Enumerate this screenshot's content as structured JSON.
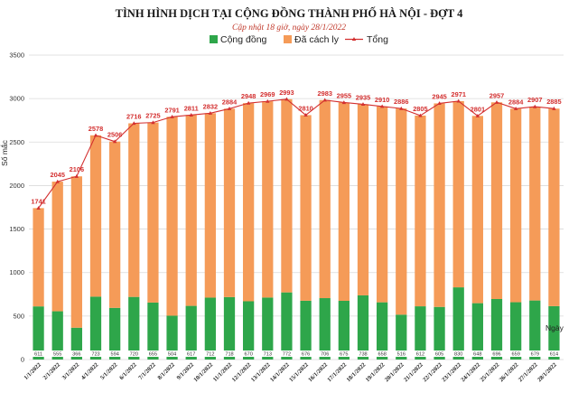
{
  "chart_data": {
    "type": "bar",
    "title": "TÌNH HÌNH DỊCH TẠI CỘNG ĐỒNG THÀNH PHỐ HÀ NỘI - ĐỢT 4",
    "subtitle": "Cập nhật 18 giờ, ngày  28/1/2022",
    "xlabel": "Ngày",
    "ylabel": "Số mắc",
    "ylim": [
      0,
      3500
    ],
    "yticks": [
      0,
      500,
      1000,
      1500,
      2000,
      2500,
      3000,
      3500
    ],
    "grid": true,
    "legend": "top-center",
    "categories": [
      "1/1/2022",
      "2/1/2022",
      "3/1/2022",
      "4/1/2022",
      "5/1/2022",
      "6/1/2022",
      "7/1/2022",
      "8/1/2022",
      "9/1/2022",
      "10/1/2022",
      "11/1/2022",
      "12/1/2022",
      "13/1/2022",
      "14/1/2022",
      "15/1/2022",
      "16/1/2022",
      "17/1/2022",
      "18/1/2022",
      "19/1/2022",
      "20/1/2022",
      "21/1/2022",
      "22/1/2022",
      "23/1/2022",
      "24/1/2022",
      "25/1/2022",
      "26/1/2022",
      "27/1/2022",
      "28/1/2022"
    ],
    "series": [
      {
        "name": "Cộng đồng",
        "type": "bar",
        "color": "#2ea64a",
        "values": [
          611,
          555,
          366,
          723,
          594,
          720,
          655,
          504,
          617,
          712,
          718,
          670,
          713,
          772,
          676,
          706,
          675,
          738,
          658,
          516,
          612,
          605,
          830,
          648,
          696,
          659,
          679,
          614
        ]
      },
      {
        "name": "Đã cách ly",
        "type": "bar",
        "color": "#f59b58",
        "values": [
          1130,
          1490,
          1740,
          1855,
          1912,
          1996,
          2070,
          2287,
          2194,
          2120,
          2166,
          2278,
          2256,
          2221,
          2134,
          2277,
          2280,
          2197,
          2252,
          2370,
          2193,
          2340,
          2141,
          2153,
          2261,
          2225,
          2228,
          2271
        ]
      },
      {
        "name": "Tổng",
        "type": "line",
        "color": "#d32f2f",
        "values": [
          1741,
          2045,
          2106,
          2578,
          2506,
          2716,
          2725,
          2791,
          2811,
          2832,
          2884,
          2948,
          2969,
          2993,
          2810,
          2983,
          2955,
          2935,
          2910,
          2886,
          2805,
          2945,
          2971,
          2801,
          2957,
          2884,
          2907,
          2885
        ]
      }
    ]
  }
}
